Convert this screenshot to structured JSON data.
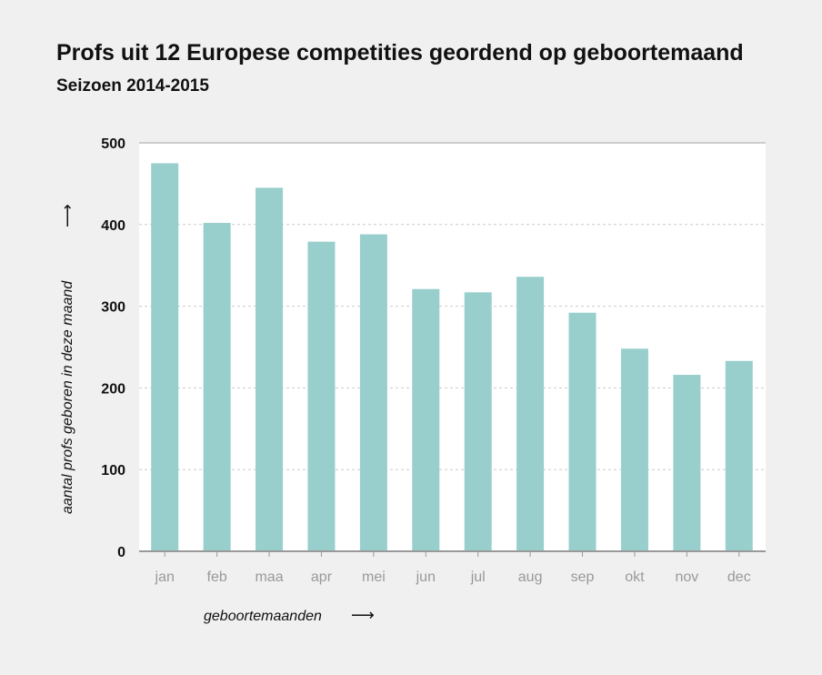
{
  "chart_data": {
    "type": "bar",
    "title": "Profs uit 12 Europese competities geordend op geboortemaand",
    "subtitle": "Seizoen 2014-2015",
    "categories": [
      "jan",
      "feb",
      "maa",
      "apr",
      "mei",
      "jun",
      "jul",
      "aug",
      "sep",
      "okt",
      "nov",
      "dec"
    ],
    "values": [
      475,
      402,
      445,
      379,
      388,
      321,
      317,
      336,
      292,
      248,
      216,
      233
    ],
    "xlabel": "geboortemaanden",
    "ylabel": "aantal profs geboren in deze maand",
    "arrow": "⟶",
    "ylim": [
      0,
      500
    ],
    "yticks": [
      0,
      100,
      200,
      300,
      400,
      500
    ],
    "grid": true,
    "bar_color": "#98cfcd"
  }
}
